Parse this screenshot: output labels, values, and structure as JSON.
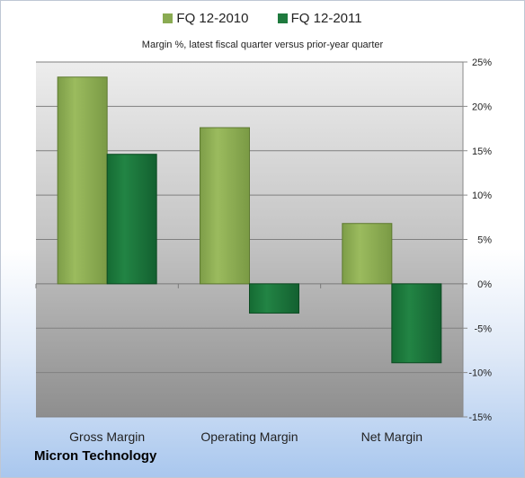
{
  "chart_data": {
    "type": "bar",
    "title": "",
    "subtitle": "Margin %,  latest fiscal quarter versus prior-year quarter",
    "categories": [
      "Gross Margin",
      "Operating Margin",
      "Net Margin"
    ],
    "series": [
      {
        "name": "FQ 12-2010",
        "values": [
          23.3,
          17.6,
          6.8
        ]
      },
      {
        "name": "FQ 12-2011",
        "values": [
          14.6,
          -3.3,
          -8.9
        ]
      }
    ],
    "ylim": [
      -15,
      25
    ],
    "yticks": [
      25,
      20,
      15,
      10,
      5,
      0,
      -5,
      -10,
      -15
    ],
    "ytick_labels": [
      "25%",
      "20%",
      "15%",
      "10%",
      "5%",
      "0%",
      "-5%",
      "-10%",
      "-15%"
    ],
    "xlabel": "",
    "ylabel": "",
    "grid": true,
    "legend_position": "top",
    "colors": {
      "FQ 12-2010": "#8aab52",
      "FQ 12-2011": "#1f7a3e"
    }
  },
  "footer": {
    "company": "Micron Technology"
  }
}
